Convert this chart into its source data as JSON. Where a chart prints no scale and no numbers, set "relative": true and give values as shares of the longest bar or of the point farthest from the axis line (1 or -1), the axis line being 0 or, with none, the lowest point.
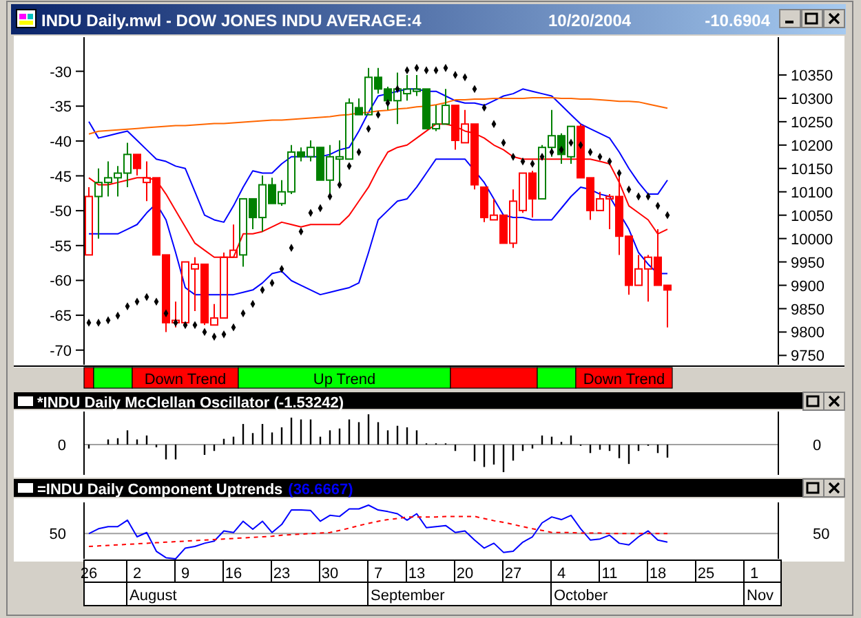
{
  "chart_data": [
    {
      "type": "candlestick",
      "title": "INDU Daily.mwl - DOW JONES INDU AVERAGE:4",
      "annotations": [
        "10/20/2004",
        "-10.6904",
        "Down Trend",
        "Up Trend",
        "Down Trend"
      ],
      "categories": [
        null,
        null,
        null,
        null,
        null,
        null,
        null,
        null,
        null,
        null,
        null,
        null,
        null,
        null,
        null,
        null,
        null,
        null,
        null,
        null,
        null,
        null,
        null,
        null,
        null,
        null,
        null,
        null,
        null,
        null,
        null,
        null,
        null,
        null,
        null,
        null,
        null,
        null,
        null,
        null,
        null,
        null,
        null,
        null,
        null,
        null,
        null,
        null,
        null,
        null,
        null,
        null,
        null,
        null,
        null,
        null,
        null,
        null,
        null,
        null,
        null
      ],
      "series": [
        {
          "type": "candlestick",
          "axis": "y2",
          "ohlc": [
            [
              9965,
              10110,
              9965,
              10090
            ],
            [
              10090,
              10150,
              10000,
              10120
            ],
            [
              10120,
              10165,
              10090,
              10130
            ],
            [
              10130,
              10155,
              10090,
              10140
            ],
            [
              10140,
              10205,
              10110,
              10180
            ],
            [
              10180,
              10180,
              10135,
              10150
            ],
            [
              10120,
              10165,
              10080,
              10130
            ],
            [
              10130,
              10130,
              9965,
              9965
            ],
            [
              9965,
              9965,
              9800,
              9820
            ],
            [
              9820,
              9865,
              9810,
              9825
            ],
            [
              9820,
              9950,
              9815,
              9950
            ],
            [
              9935,
              9960,
              9845,
              9945
            ],
            [
              9945,
              9945,
              9815,
              9820
            ],
            [
              9815,
              9860,
              9815,
              9830
            ],
            [
              9830,
              9970,
              9830,
              9960
            ],
            [
              9960,
              10030,
              9960,
              9975
            ],
            [
              9965,
              10085,
              9940,
              10085
            ],
            [
              10085,
              10085,
              10020,
              10045
            ],
            [
              10045,
              10135,
              10015,
              10115
            ],
            [
              10115,
              10130,
              10075,
              10075
            ],
            [
              10075,
              10125,
              10070,
              10100
            ],
            [
              10100,
              10200,
              10095,
              10185
            ],
            [
              10185,
              10195,
              10165,
              10175
            ],
            [
              10175,
              10210,
              10165,
              10195
            ],
            [
              10195,
              10195,
              10125,
              10125
            ],
            [
              10125,
              10200,
              10095,
              10175
            ],
            [
              10170,
              10210,
              10115,
              10175
            ],
            [
              10170,
              10300,
              10170,
              10290
            ],
            [
              10280,
              10300,
              10265,
              10265
            ],
            [
              10265,
              10365,
              10265,
              10345
            ],
            [
              10345,
              10365,
              10310,
              10320
            ],
            [
              10320,
              10325,
              10275,
              10295
            ],
            [
              10295,
              10355,
              10245,
              10320
            ],
            [
              10310,
              10350,
              10295,
              10320
            ],
            [
              10315,
              10350,
              10305,
              10320
            ],
            [
              10320,
              10320,
              10235,
              10235
            ],
            [
              10235,
              10285,
              10230,
              10245
            ],
            [
              10245,
              10320,
              10245,
              10285
            ],
            [
              10285,
              10285,
              10190,
              10210
            ],
            [
              10205,
              10275,
              10205,
              10245
            ],
            [
              10245,
              10245,
              10105,
              10115
            ],
            [
              10110,
              10110,
              10035,
              10045
            ],
            [
              10040,
              10085,
              10040,
              10050
            ],
            [
              10050,
              10050,
              9990,
              9990
            ],
            [
              9990,
              10105,
              9980,
              10080
            ],
            [
              10060,
              10140,
              10055,
              10140
            ],
            [
              10140,
              10145,
              10045,
              10085
            ],
            [
              10085,
              10200,
              10085,
              10195
            ],
            [
              10195,
              10275,
              10175,
              10220
            ],
            [
              10220,
              10225,
              10160,
              10180
            ],
            [
              10175,
              10240,
              10160,
              10240
            ],
            [
              10240,
              10245,
              10130,
              10130
            ],
            [
              10130,
              10130,
              10040,
              10060
            ],
            [
              10060,
              10100,
              10060,
              10085
            ],
            [
              10085,
              10095,
              10020,
              10090
            ],
            [
              10090,
              10135,
              9965,
              10005
            ],
            [
              10005,
              10005,
              9880,
              9900
            ],
            [
              9900,
              9965,
              9900,
              9935
            ],
            [
              9935,
              9965,
              9865,
              9960
            ],
            [
              9960,
              10020,
              9900,
              9900
            ],
            [
              9900,
              9900,
              9810,
              9890
            ]
          ],
          "colors": [
            "#ff0000",
            "#008000",
            "#008000",
            "#008000",
            "#008000",
            "#ff0000",
            "#ff0000",
            "#ff0000",
            "#ff0000",
            "#ff0000",
            "#ff0000",
            "#ff0000",
            "#ff0000",
            "#ff0000",
            "#ff0000",
            "#ff0000",
            "#008000",
            "#008000",
            "#008000",
            "#008000",
            "#008000",
            "#008000",
            "#008000",
            "#008000",
            "#008000",
            "#008000",
            "#008000",
            "#008000",
            "#008000",
            "#008000",
            "#008000",
            "#008000",
            "#008000",
            "#008000",
            "#008000",
            "#008000",
            "#008000",
            "#008000",
            "#ff0000",
            "#ff0000",
            "#ff0000",
            "#ff0000",
            "#ff0000",
            "#ff0000",
            "#ff0000",
            "#ff0000",
            "#ff0000",
            "#008000",
            "#008000",
            "#008000",
            "#008000",
            "#ff0000",
            "#ff0000",
            "#ff0000",
            "#ff0000",
            "#ff0000",
            "#ff0000",
            "#ff0000",
            "#ff0000",
            "#ff0000",
            "#ff0000"
          ]
        },
        {
          "type": "line",
          "axis": "y2",
          "color": "#0000ff",
          "values": [
            10250,
            10215,
            10220,
            10225,
            10230,
            10210,
            10190,
            10170,
            10165,
            10155,
            10150,
            10100,
            10050,
            10040,
            10035,
            10070,
            10110,
            10145,
            10140,
            10140,
            10160,
            10175,
            10175,
            10175,
            10175,
            10180,
            10190,
            10195,
            10230,
            10270,
            10305,
            10310,
            10315,
            10320,
            10320,
            10315,
            10315,
            10305,
            10295,
            10290,
            10290,
            10285,
            10295,
            10305,
            10310,
            10320,
            10315,
            10310,
            10305,
            10285,
            10265,
            10245,
            10235,
            10225,
            10215,
            10185,
            10150,
            10120,
            10095,
            10095,
            10125
          ]
        },
        {
          "type": "line",
          "axis": "y2",
          "color": "#ff0000",
          "values": [
            10130,
            10115,
            10115,
            10120,
            10125,
            10130,
            10130,
            10125,
            10095,
            10060,
            10025,
            9990,
            9975,
            9960,
            9960,
            9960,
            10010,
            10010,
            10015,
            10025,
            10035,
            10030,
            10025,
            10030,
            10030,
            10030,
            10030,
            10050,
            10080,
            10110,
            10150,
            10185,
            10195,
            10200,
            10215,
            10230,
            10245,
            10245,
            10240,
            10230,
            10225,
            10215,
            10200,
            10190,
            10175,
            10170,
            10170,
            10170,
            10170,
            10170,
            10170,
            10170,
            10170,
            10165,
            10160,
            10120,
            10070,
            10055,
            10040,
            10010,
            10020
          ]
        },
        {
          "type": "line",
          "axis": "y2",
          "color": "#0000ff",
          "values": [
            10010,
            10010,
            10010,
            10010,
            10020,
            10030,
            10055,
            10075,
            10040,
            9970,
            9895,
            9880,
            9880,
            9880,
            9880,
            9880,
            9885,
            9890,
            9905,
            9925,
            9930,
            9910,
            9900,
            9890,
            9880,
            9885,
            9890,
            9895,
            9905,
            9970,
            10040,
            10060,
            10080,
            10085,
            10110,
            10140,
            10170,
            10170,
            10170,
            10170,
            10145,
            10120,
            10085,
            10050,
            10045,
            10045,
            10040,
            10040,
            10040,
            10065,
            10090,
            10110,
            10105,
            10095,
            10090,
            10055,
            10020,
            9970,
            9945,
            9925,
            9925
          ]
        },
        {
          "type": "line",
          "color": "#ff6600",
          "values": [
            -39.0,
            -38.6,
            -38.5,
            -38.4,
            -38.3,
            -38.2,
            -38.1,
            -38.0,
            -37.9,
            -37.8,
            -37.8,
            -37.7,
            -37.6,
            -37.5,
            -37.5,
            -37.4,
            -37.3,
            -37.2,
            -37.1,
            -37.0,
            -37.0,
            -36.9,
            -36.8,
            -36.7,
            -36.6,
            -36.5,
            -36.3,
            -36.2,
            -36.0,
            -35.9,
            -35.7,
            -35.6,
            -35.4,
            -35.3,
            -35.1,
            -35.0,
            -34.8,
            -34.5,
            -34.1,
            -34.1,
            -34.0,
            -34.0,
            -33.9,
            -33.9,
            -33.9,
            -33.9,
            -33.8,
            -33.8,
            -33.8,
            -33.9,
            -33.9,
            -34.0,
            -34.0,
            -34.1,
            -34.2,
            -34.3,
            -34.3,
            -34.4,
            -34.7,
            -35.0,
            -35.3
          ]
        },
        {
          "type": "scatter",
          "axis": "y2",
          "color": "#000000",
          "marker": "diamond",
          "values": [
            9820,
            9820,
            9825,
            9835,
            9855,
            9865,
            9875,
            9865,
            9840,
            9820,
            9815,
            9815,
            9800,
            9790,
            9795,
            9810,
            9840,
            9860,
            9890,
            9905,
            9935,
            9980,
            10015,
            10055,
            10065,
            10090,
            10115,
            10155,
            10185,
            10235,
            10265,
            10290,
            10320,
            10360,
            10365,
            10360,
            10360,
            10365,
            10350,
            10345,
            10320,
            10280,
            10245,
            10205,
            10175,
            10165,
            10160,
            10175,
            10185,
            10190,
            10205,
            10200,
            10185,
            10175,
            10165,
            10140,
            10105,
            10090,
            10090,
            10070,
            10050
          ]
        }
      ],
      "ylim": [
        -72.1,
        -25.5
      ],
      "yticks": [
        -70,
        -65,
        -60,
        -55,
        -50,
        -45,
        -40,
        -35,
        -30
      ],
      "y2lim": [
        9730,
        10425
      ],
      "y2ticks": [
        9750,
        9800,
        9850,
        9900,
        9950,
        10000,
        10050,
        10100,
        10150,
        10200,
        10250,
        10300,
        10350
      ],
      "tick_labels": "y"
    },
    {
      "type": "bar",
      "title": "*INDU Daily McClellan Oscillator (-1.53242)",
      "relative": true,
      "color": "#000000",
      "categories": [
        null,
        null,
        null,
        null,
        null,
        null,
        null,
        null,
        null,
        null,
        null,
        null,
        null,
        null,
        null,
        null,
        null,
        null,
        null,
        null,
        null,
        null,
        null,
        null,
        null,
        null,
        null,
        null,
        null,
        null,
        null,
        null,
        null,
        null,
        null,
        null,
        null,
        null,
        null,
        null,
        null,
        null,
        null,
        null,
        null,
        null,
        null,
        null,
        null,
        null,
        null,
        null,
        null,
        null,
        null,
        null,
        null,
        null,
        null,
        null,
        null
      ],
      "values": [
        -0.13,
        0,
        0.17,
        0.21,
        0.47,
        0.17,
        0.3,
        -0.09,
        -0.49,
        -0.49,
        0,
        0,
        -0.34,
        -0.21,
        0.19,
        0.26,
        0.68,
        0.38,
        0.68,
        0.4,
        0.57,
        0.89,
        0.83,
        0.83,
        0.26,
        0.47,
        0.53,
        0.83,
        0.74,
        1,
        0.74,
        0.47,
        0.62,
        0.57,
        0.47,
        0.04,
        0.04,
        0.04,
        -0.21,
        0,
        -0.55,
        -0.74,
        -0.66,
        -0.91,
        -0.53,
        -0.21,
        -0.13,
        0.3,
        0.26,
        0.09,
        0.3,
        -0.04,
        -0.28,
        -0.17,
        -0.21,
        -0.45,
        -0.64,
        -0.21,
        -0.04,
        -0.28,
        -0.43
      ],
      "ref_lines": [
        {
          "axis": "y",
          "value": 0,
          "label": "0",
          "color": "#a0a0a0"
        }
      ],
      "tick_labels": false
    },
    {
      "type": "line",
      "title": "=INDU Daily Component Uptrends",
      "subtitle": "(36.6667)",
      "relative": true,
      "categories": [
        "26",
        null,
        null,
        null,
        null,
        "2",
        null,
        null,
        null,
        null,
        "9",
        null,
        null,
        null,
        null,
        "16",
        null,
        null,
        null,
        null,
        "23",
        null,
        null,
        null,
        null,
        "30",
        null,
        null,
        null,
        null,
        "7",
        null,
        null,
        null,
        "13",
        null,
        null,
        null,
        null,
        "20",
        null,
        null,
        null,
        null,
        "27",
        null,
        null,
        null,
        null,
        "4",
        null,
        null,
        null,
        null,
        "11",
        null,
        null,
        null,
        null,
        "18",
        null,
        null,
        null,
        null,
        "25",
        null,
        null,
        null,
        null,
        "1",
        null,
        null
      ],
      "series": [
        {
          "color": "#0000ff",
          "values": [
            0.47,
            0.56,
            0.6,
            0.6,
            0.72,
            0.41,
            0.49,
            0.14,
            0.02,
            0,
            0.2,
            0.23,
            0.29,
            0.33,
            0.52,
            0.49,
            0.7,
            0.55,
            0.7,
            0.49,
            0.64,
            0.91,
            0.91,
            0.9,
            0.7,
            0.81,
            0.79,
            0.93,
            0.93,
            1,
            0.91,
            0.88,
            0.84,
            0.72,
            0.84,
            0.58,
            0.6,
            0.62,
            0.49,
            0.52,
            0.35,
            0.2,
            0.29,
            0.12,
            0.14,
            0.31,
            0.41,
            0.67,
            0.78,
            0.73,
            0.81,
            0.56,
            0.35,
            0.37,
            0.44,
            0.29,
            0.26,
            0.41,
            0.52,
            0.35,
            0.31,
            null,
            null,
            null,
            null,
            null,
            null,
            null,
            null,
            null,
            null,
            null
          ]
        },
        {
          "color": "#ff0000",
          "line_style": "dashed",
          "values": [
            0.23,
            0.24,
            0.25,
            0.26,
            0.27,
            0.28,
            0.29,
            0.3,
            0.31,
            0.32,
            0.33,
            0.34,
            0.35,
            0.36,
            0.37,
            0.38,
            0.39,
            0.4,
            0.41,
            0.42,
            0.44,
            0.45,
            0.46,
            0.47,
            0.48,
            0.49,
            0.53,
            0.57,
            0.62,
            0.66,
            0.7,
            0.73,
            0.75,
            0.78,
            0.78,
            0.78,
            0.78,
            0.79,
            0.79,
            0.79,
            0.79,
            0.75,
            0.71,
            0.68,
            0.64,
            0.6,
            0.56,
            0.53,
            0.49,
            0.49,
            0.49,
            0.48,
            0.48,
            0.48,
            0.47,
            0.47,
            0.47,
            0.47,
            0.47,
            0.47,
            0.47,
            null,
            null,
            null,
            null,
            null,
            null,
            null,
            null,
            null,
            null,
            null
          ]
        }
      ],
      "ref_lines": [
        {
          "axis": "y",
          "value": 0.47,
          "color": "#a0a0a0"
        }
      ],
      "annotations": [
        "50",
        "50",
        "August",
        "September",
        "October",
        "Nov"
      ],
      "tick_labels": "x"
    }
  ]
}
